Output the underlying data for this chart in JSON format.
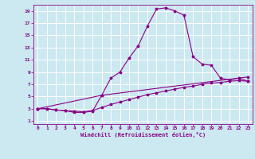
{
  "xlabel": "Windchill (Refroidissement éolien,°C)",
  "bg_color": "#cce8f0",
  "grid_color": "#ffffff",
  "line_color": "#880088",
  "xlim": [
    -0.5,
    23.5
  ],
  "ylim": [
    0.5,
    20.0
  ],
  "xticks": [
    0,
    1,
    2,
    3,
    4,
    5,
    6,
    7,
    8,
    9,
    10,
    11,
    12,
    13,
    14,
    15,
    16,
    17,
    18,
    19,
    20,
    21,
    22,
    23
  ],
  "yticks": [
    1,
    3,
    5,
    7,
    9,
    11,
    13,
    15,
    17,
    19
  ],
  "line1_x": [
    0,
    1,
    2,
    3,
    4,
    5,
    6,
    7,
    8,
    9,
    10,
    11,
    12,
    13,
    14,
    15,
    16,
    17,
    18,
    19,
    20,
    21,
    22,
    23
  ],
  "line1_y": [
    3.0,
    3.0,
    2.8,
    2.7,
    2.4,
    2.4,
    2.6,
    5.2,
    8.0,
    9.0,
    11.3,
    13.3,
    16.5,
    19.3,
    19.5,
    19.0,
    18.3,
    11.5,
    10.3,
    10.1,
    8.0,
    7.7,
    8.0,
    7.5
  ],
  "line2_x": [
    0,
    1,
    2,
    3,
    4,
    5,
    6,
    7,
    8,
    9,
    10,
    11,
    12,
    13,
    14,
    15,
    16,
    17,
    18,
    19,
    20,
    21,
    22,
    23
  ],
  "line2_y": [
    3.0,
    3.0,
    2.8,
    2.7,
    2.6,
    2.5,
    2.7,
    3.2,
    3.7,
    4.1,
    4.5,
    4.9,
    5.3,
    5.6,
    5.9,
    6.2,
    6.5,
    6.7,
    7.0,
    7.2,
    7.3,
    7.5,
    7.6,
    7.5
  ],
  "line3_x": [
    0,
    7,
    23
  ],
  "line3_y": [
    3.0,
    5.2,
    8.2
  ],
  "marker": "*",
  "markersize": 2.5,
  "linewidth": 0.8
}
